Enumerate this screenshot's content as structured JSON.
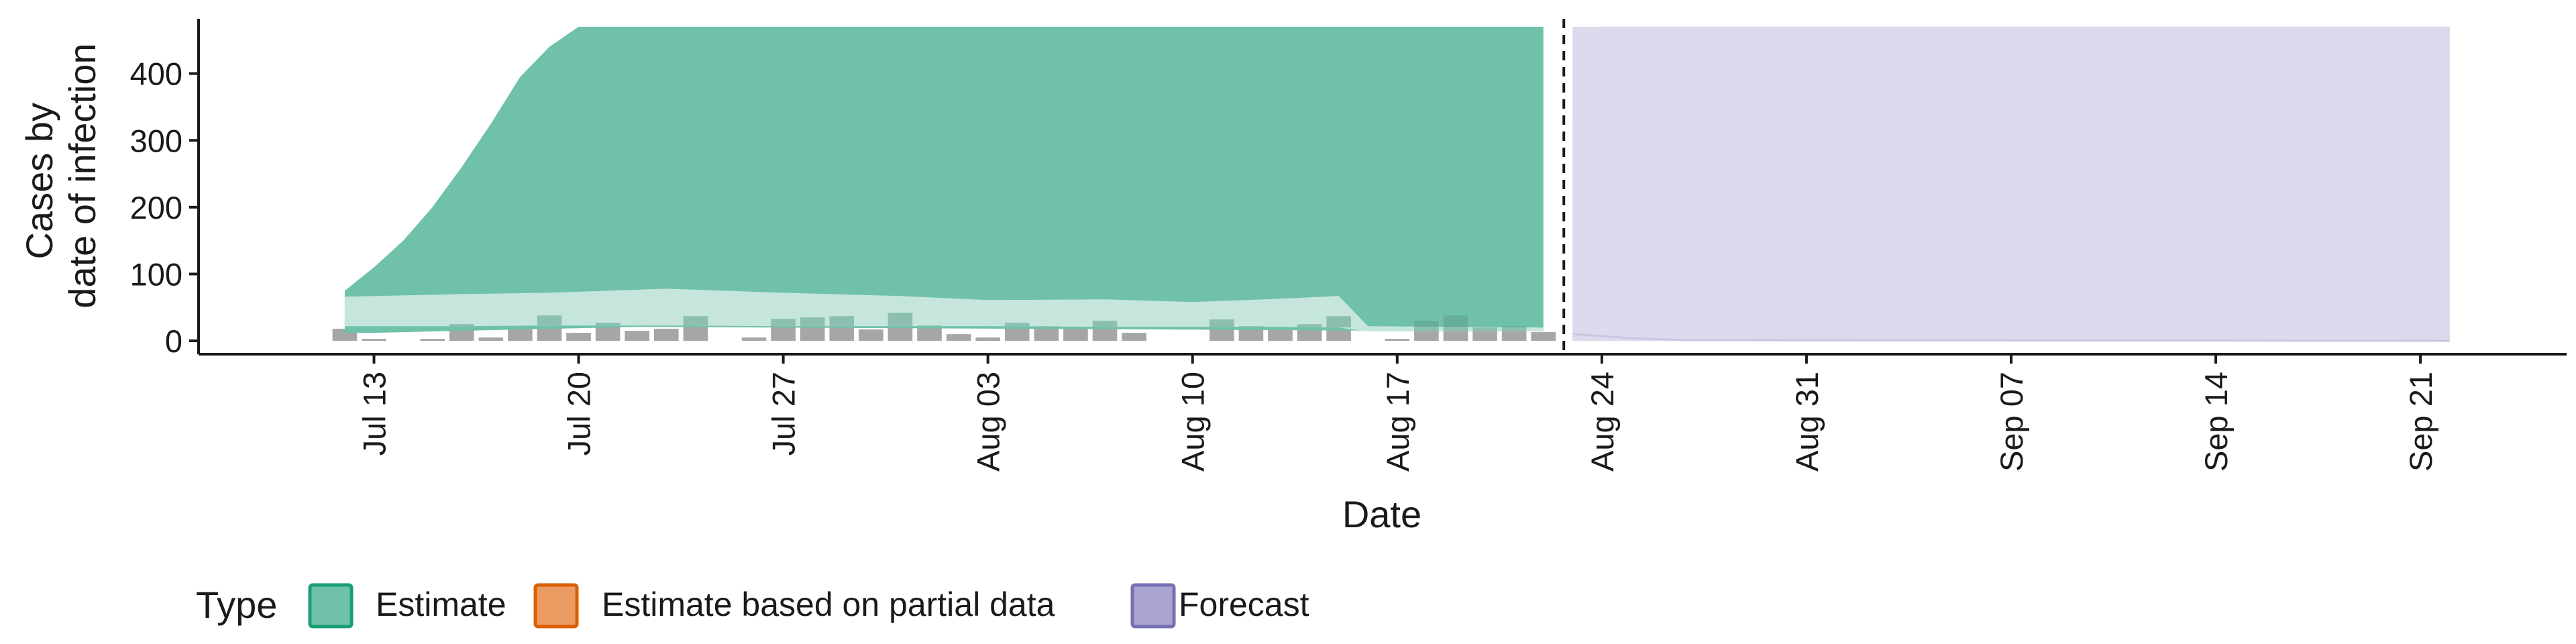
{
  "chart_data": {
    "type": "area",
    "title": "",
    "xlabel": "Date",
    "ylabel_lines": [
      "Cases by",
      "date of infection"
    ],
    "y_ticks": [
      0,
      100,
      200,
      300,
      400
    ],
    "ylim": [
      -20,
      490
    ],
    "xlim": [
      "2020-07-07",
      "2020-09-26"
    ],
    "x_ticks": [
      {
        "date": "2020-07-13",
        "label": "Jul 13"
      },
      {
        "date": "2020-07-20",
        "label": "Jul 20"
      },
      {
        "date": "2020-07-27",
        "label": "Jul 27"
      },
      {
        "date": "2020-08-03",
        "label": "Aug 03"
      },
      {
        "date": "2020-08-10",
        "label": "Aug 10"
      },
      {
        "date": "2020-08-17",
        "label": "Aug 17"
      },
      {
        "date": "2020-08-24",
        "label": "Aug 24"
      },
      {
        "date": "2020-08-31",
        "label": "Aug 31"
      },
      {
        "date": "2020-09-07",
        "label": "Sep 07"
      },
      {
        "date": "2020-09-14",
        "label": "Sep 14"
      },
      {
        "date": "2020-09-21",
        "label": "Sep 21"
      }
    ],
    "cutoff_date": "2020-08-23",
    "grid": false,
    "legend": {
      "title": "Type",
      "position": "bottom-left",
      "entries": [
        {
          "label": "Estimate",
          "fill": "#70c1aa",
          "stroke": "#1b9e77"
        },
        {
          "label": "Estimate based on partial data",
          "fill": "#eb9a62",
          "stroke": "#d95f02"
        },
        {
          "label": "Forecast",
          "fill": "#a9a3d0",
          "stroke": "#7570b3"
        }
      ]
    },
    "colors": {
      "estimate_outer": "#70c1aa",
      "estimate_inner": "#c6e6dd",
      "forecast_outer": "#a9a3d0",
      "forecast_inner": "#dcdaec",
      "bars": "#a6a6a6",
      "bars_over_estimate": "#5e9e8a"
    },
    "observed_cases": [
      {
        "date": "2020-07-12",
        "value": 18
      },
      {
        "date": "2020-07-13",
        "value": 3
      },
      {
        "date": "2020-07-15",
        "value": 3
      },
      {
        "date": "2020-07-16",
        "value": 25
      },
      {
        "date": "2020-07-17",
        "value": 5
      },
      {
        "date": "2020-07-18",
        "value": 18
      },
      {
        "date": "2020-07-19",
        "value": 38
      },
      {
        "date": "2020-07-20",
        "value": 12
      },
      {
        "date": "2020-07-21",
        "value": 27
      },
      {
        "date": "2020-07-22",
        "value": 15
      },
      {
        "date": "2020-07-23",
        "value": 18
      },
      {
        "date": "2020-07-24",
        "value": 37
      },
      {
        "date": "2020-07-26",
        "value": 5
      },
      {
        "date": "2020-07-27",
        "value": 33
      },
      {
        "date": "2020-07-28",
        "value": 35
      },
      {
        "date": "2020-07-29",
        "value": 37
      },
      {
        "date": "2020-07-30",
        "value": 17
      },
      {
        "date": "2020-07-31",
        "value": 42
      },
      {
        "date": "2020-08-01",
        "value": 23
      },
      {
        "date": "2020-08-02",
        "value": 10
      },
      {
        "date": "2020-08-03",
        "value": 5
      },
      {
        "date": "2020-08-04",
        "value": 27
      },
      {
        "date": "2020-08-05",
        "value": 22
      },
      {
        "date": "2020-08-06",
        "value": 20
      },
      {
        "date": "2020-08-07",
        "value": 30
      },
      {
        "date": "2020-08-08",
        "value": 12
      },
      {
        "date": "2020-08-11",
        "value": 32
      },
      {
        "date": "2020-08-12",
        "value": 22
      },
      {
        "date": "2020-08-13",
        "value": 18
      },
      {
        "date": "2020-08-14",
        "value": 25
      },
      {
        "date": "2020-08-15",
        "value": 37
      },
      {
        "date": "2020-08-17",
        "value": 3
      },
      {
        "date": "2020-08-18",
        "value": 30
      },
      {
        "date": "2020-08-19",
        "value": 38
      },
      {
        "date": "2020-08-20",
        "value": 20
      },
      {
        "date": "2020-08-21",
        "value": 22
      },
      {
        "date": "2020-08-22",
        "value": 13
      }
    ],
    "estimate_outer": {
      "dates": [
        "2020-07-12",
        "2020-07-13",
        "2020-07-14",
        "2020-07-15",
        "2020-07-16",
        "2020-07-17",
        "2020-07-18",
        "2020-07-19",
        "2020-07-20",
        "2020-07-21",
        "2020-07-22",
        "2020-08-22"
      ],
      "lower": [
        12,
        12,
        13,
        14,
        15,
        16,
        17,
        18,
        19,
        20,
        21,
        14
      ],
      "upper": [
        75,
        110,
        150,
        200,
        260,
        325,
        395,
        440,
        470,
        470,
        470,
        470
      ]
    },
    "estimate_inner": {
      "dates": [
        "2020-07-12",
        "2020-07-16",
        "2020-07-19",
        "2020-07-23",
        "2020-07-27",
        "2020-07-31",
        "2020-08-03",
        "2020-08-07",
        "2020-08-10",
        "2020-08-13",
        "2020-08-15",
        "2020-08-16",
        "2020-08-22"
      ],
      "lower": [
        22,
        22,
        23,
        23,
        22,
        22,
        22,
        21,
        21,
        21,
        20,
        14,
        14
      ],
      "upper": [
        66,
        70,
        72,
        78,
        72,
        67,
        61,
        62,
        58,
        63,
        67,
        22,
        20
      ]
    },
    "forecast_outer": {
      "dates": [
        "2020-08-23",
        "2020-08-24",
        "2020-09-22"
      ],
      "lower": [
        0,
        0,
        0
      ],
      "upper": [
        330,
        470,
        470
      ]
    },
    "forecast_inner": {
      "dates": [
        "2020-08-23",
        "2020-08-24",
        "2020-08-27",
        "2020-09-22"
      ],
      "lower": [
        0,
        0,
        0,
        0
      ],
      "upper": [
        470,
        470,
        470,
        470
      ]
    },
    "forecast_median_line": {
      "dates": [
        "2020-08-23",
        "2020-08-25",
        "2020-08-27",
        "2020-09-22"
      ],
      "values": [
        10,
        4,
        1,
        0
      ]
    }
  }
}
